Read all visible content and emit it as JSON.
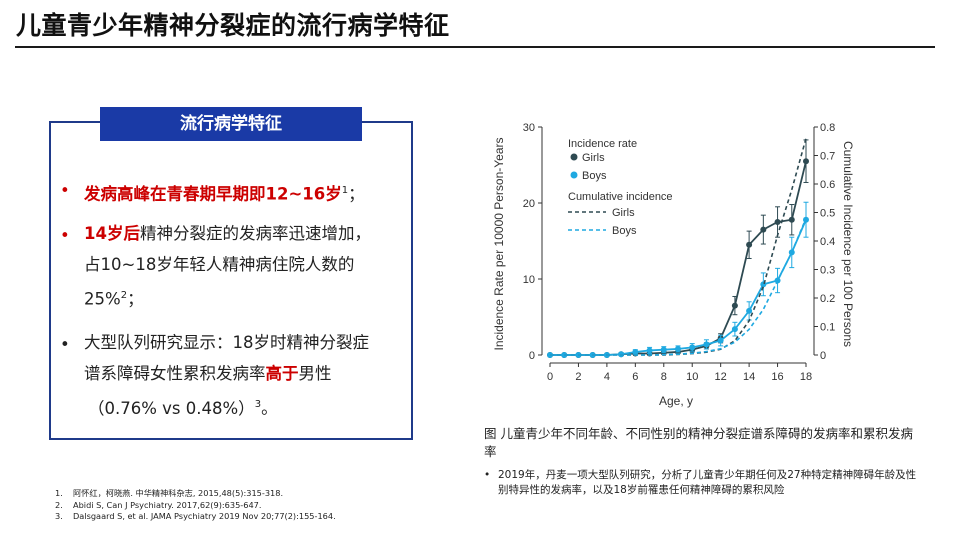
{
  "page": {
    "title": "儿童青少年精神分裂症的流行病学特征"
  },
  "box": {
    "header": "流行病学特征",
    "bullets": [
      {
        "red": "发病高峰在青春期早期即12~16岁",
        "sup": "1",
        "after": "；"
      },
      {
        "red": "14岁后",
        "text1": "精神分裂症的发病率迅速增加，",
        "text2": "占10~18岁年轻人精神病住院人数的",
        "text3": "25%",
        "sup": "2",
        "after": "；"
      },
      {
        "text1": "大型队列研究显示：18岁时精神分裂症",
        "text2a": "谱系障碍女性累积发病率",
        "red": "高于",
        "text2b": "男性",
        "text3": "（0.76% vs 0.48%）",
        "sup": "3",
        "after": "。"
      }
    ],
    "bullet_symbol": "•"
  },
  "references": [
    {
      "num": "1.",
      "text": "阿怀红，柯晓燕. 中华精神科杂志, 2015,48(5):315-318."
    },
    {
      "num": "2.",
      "text": "Abidi S, Can J Psychiatry. 2017,62(9):635-647."
    },
    {
      "num": "3.",
      "text": "Dalsgaard S, et al. JAMA Psychiatry 2019 Nov 20;77(2):155-164."
    }
  ],
  "caption": "图 儿童青少年不同年龄、不同性别的精神分裂症谱系障碍的发病率和累积发病率",
  "note": {
    "bullet": "•",
    "text": "2019年，丹麦一项大型队列研究，分析了儿童青少年期任何及27种特定精神障碍年龄及性别特异性的发病率，以及18岁前罹患任何精神障碍的累积风险"
  },
  "chart_data": {
    "type": "line",
    "xlabel": "Age, y",
    "ylabel_left": "Incidence Rate per 10000 Person-Years",
    "ylabel_right": "Cumulative Incidence per 100 Persons",
    "x": [
      0,
      1,
      2,
      3,
      4,
      5,
      6,
      7,
      8,
      9,
      10,
      11,
      12,
      13,
      14,
      15,
      16,
      17,
      18
    ],
    "x_ticks": [
      "0",
      "2",
      "4",
      "6",
      "8",
      "10",
      "12",
      "14",
      "16",
      "18"
    ],
    "x_tick_values": [
      0,
      2,
      4,
      6,
      8,
      10,
      12,
      14,
      16,
      18
    ],
    "ylim_left": [
      0,
      30
    ],
    "y_ticks_left": [
      0,
      10,
      20,
      30
    ],
    "ylim_right": [
      0,
      0.8
    ],
    "y_ticks_right": [
      "0",
      "0.1",
      "0.2",
      "0.3",
      "0.4",
      "0.5",
      "0.6",
      "0.7",
      "0.8"
    ],
    "y_tick_values_right": [
      0,
      0.1,
      0.2,
      0.3,
      0.4,
      0.5,
      0.6,
      0.7,
      0.8
    ],
    "legend": {
      "incidence_title": "Incidence rate",
      "cumulative_title": "Cumulative incidence",
      "girls": "Girls",
      "boys": "Boys"
    },
    "colors": {
      "girls": "#2e4a52",
      "boys": "#1fa9e1",
      "axis": "#333333"
    },
    "series": [
      {
        "name": "Girls",
        "kind": "incidence",
        "values": [
          0,
          0,
          0,
          0,
          0,
          0.1,
          0.2,
          0.2,
          0.3,
          0.4,
          0.7,
          1.2,
          2.2,
          6.5,
          14.5,
          16.5,
          17.5,
          17.8,
          25.5
        ],
        "errors": [
          0,
          0,
          0,
          0,
          0,
          0.1,
          0.1,
          0.1,
          0.2,
          0.2,
          0.3,
          0.4,
          0.6,
          1.2,
          1.8,
          1.9,
          2,
          2,
          2.8
        ]
      },
      {
        "name": "Boys",
        "kind": "incidence",
        "values": [
          0,
          0,
          0,
          0,
          0,
          0.1,
          0.4,
          0.6,
          0.7,
          0.8,
          1.0,
          1.4,
          1.9,
          3.4,
          5.8,
          9.3,
          9.8,
          13.5,
          17.8
        ],
        "errors": [
          0,
          0,
          0,
          0,
          0,
          0.1,
          0.3,
          0.4,
          0.4,
          0.4,
          0.5,
          0.6,
          0.7,
          0.9,
          1.2,
          1.5,
          1.6,
          2,
          2.3
        ]
      },
      {
        "name": "Girls",
        "kind": "cumulative",
        "values": [
          0,
          0,
          0,
          0,
          0,
          0,
          0,
          0,
          0,
          0.002,
          0.005,
          0.01,
          0.02,
          0.05,
          0.12,
          0.24,
          0.42,
          0.58,
          0.76
        ]
      },
      {
        "name": "Boys",
        "kind": "cumulative",
        "values": [
          0,
          0,
          0,
          0,
          0,
          0,
          0,
          0,
          0.001,
          0.003,
          0.006,
          0.012,
          0.022,
          0.045,
          0.09,
          0.16,
          0.26,
          0.36,
          0.48
        ]
      }
    ]
  }
}
